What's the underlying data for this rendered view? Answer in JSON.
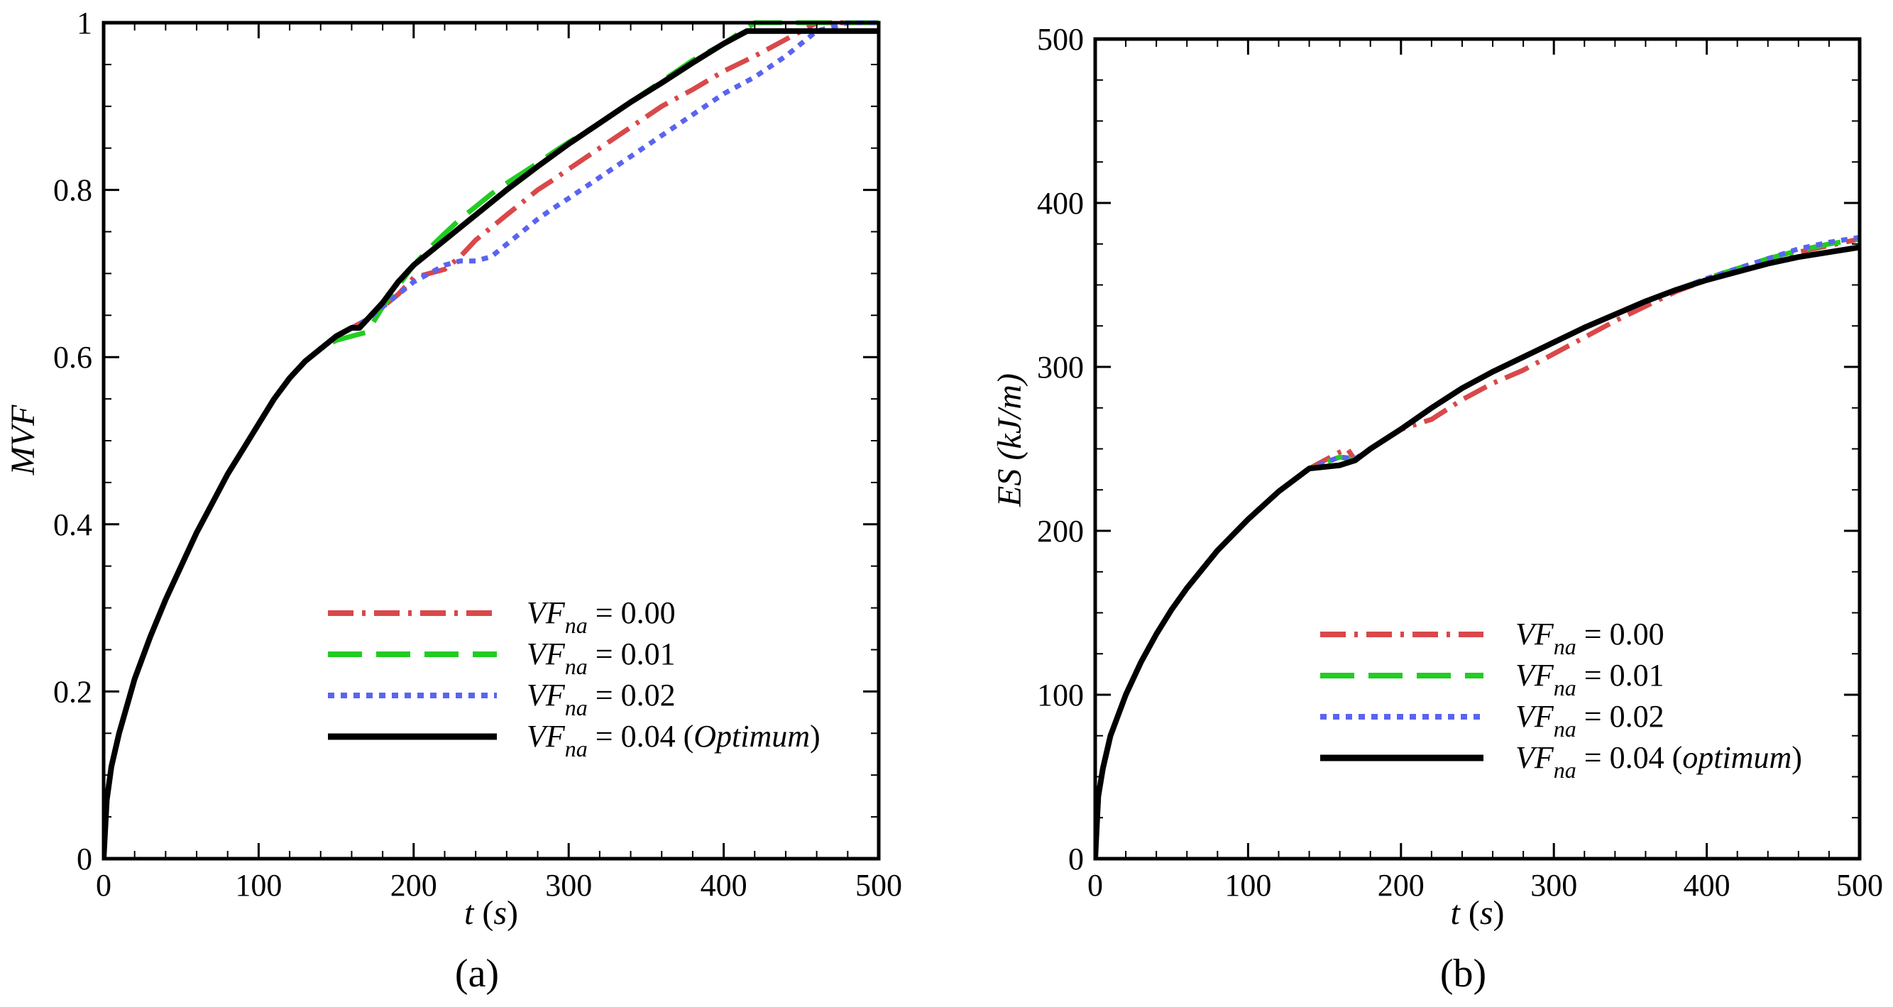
{
  "chart_data": [
    {
      "type": "line",
      "panel_label": "(a)",
      "xlabel": {
        "var": "t",
        "unit": "s"
      },
      "ylabel": "MVF",
      "xlim": [
        0,
        500
      ],
      "ylim": [
        0,
        1
      ],
      "xticks": [
        0,
        100,
        200,
        300,
        400,
        500
      ],
      "xtick_labels": [
        "0",
        "100",
        "200",
        "300",
        "400",
        "500"
      ],
      "yticks": [
        0,
        0.2,
        0.4,
        0.6,
        0.8,
        1
      ],
      "ytick_labels": [
        "0",
        "0.2",
        "0.4",
        "0.6",
        "0.8",
        "1"
      ],
      "grid": false,
      "legend_position": "bottom-right",
      "series": [
        {
          "name": "VFna = 0.00",
          "legend": {
            "sym": "VF",
            "sub": "na",
            "eq": " = 0.00",
            "note": ""
          },
          "color": "#d9484a",
          "style": "dashdot",
          "x": [
            0,
            2,
            5,
            10,
            20,
            30,
            40,
            50,
            60,
            70,
            80,
            90,
            100,
            110,
            120,
            130,
            140,
            150,
            160,
            170,
            180,
            190,
            200,
            210,
            220,
            230,
            240,
            250,
            260,
            270,
            280,
            290,
            300,
            320,
            340,
            360,
            380,
            400,
            420,
            440,
            450,
            460,
            480,
            500
          ],
          "y": [
            0,
            0.07,
            0.11,
            0.15,
            0.215,
            0.265,
            0.31,
            0.35,
            0.39,
            0.425,
            0.46,
            0.49,
            0.52,
            0.55,
            0.575,
            0.595,
            0.61,
            0.625,
            0.635,
            0.645,
            0.66,
            0.675,
            0.695,
            0.7,
            0.705,
            0.72,
            0.74,
            0.755,
            0.77,
            0.785,
            0.8,
            0.812,
            0.825,
            0.85,
            0.875,
            0.9,
            0.92,
            0.942,
            0.96,
            0.98,
            0.99,
            1,
            1,
            1
          ]
        },
        {
          "name": "VFna = 0.01",
          "legend": {
            "sym": "VF",
            "sub": "na",
            "eq": " = 0.01",
            "note": ""
          },
          "color": "#22cc22",
          "style": "longdash",
          "x": [
            0,
            2,
            5,
            10,
            20,
            30,
            40,
            50,
            60,
            70,
            80,
            90,
            100,
            110,
            120,
            130,
            140,
            150,
            160,
            170,
            180,
            190,
            200,
            210,
            220,
            230,
            240,
            250,
            260,
            270,
            280,
            290,
            300,
            320,
            340,
            360,
            380,
            400,
            420,
            430,
            440,
            450,
            460,
            480,
            500
          ],
          "y": [
            0,
            0.07,
            0.11,
            0.15,
            0.215,
            0.265,
            0.31,
            0.35,
            0.39,
            0.425,
            0.46,
            0.49,
            0.52,
            0.55,
            0.575,
            0.595,
            0.61,
            0.62,
            0.625,
            0.63,
            0.66,
            0.685,
            0.71,
            0.73,
            0.748,
            0.765,
            0.78,
            0.795,
            0.808,
            0.82,
            0.832,
            0.845,
            0.857,
            0.88,
            0.905,
            0.93,
            0.955,
            0.975,
            1,
            1,
            1,
            1,
            1,
            1,
            1
          ]
        },
        {
          "name": "VFna = 0.02",
          "legend": {
            "sym": "VF",
            "sub": "na",
            "eq": " = 0.02",
            "note": ""
          },
          "color": "#5a64f0",
          "style": "dotted",
          "x": [
            0,
            2,
            5,
            10,
            20,
            30,
            40,
            50,
            60,
            70,
            80,
            90,
            100,
            110,
            120,
            130,
            140,
            150,
            160,
            170,
            180,
            190,
            200,
            210,
            220,
            230,
            240,
            250,
            260,
            270,
            280,
            290,
            300,
            320,
            340,
            360,
            380,
            400,
            420,
            440,
            460,
            480,
            500
          ],
          "y": [
            0,
            0.07,
            0.11,
            0.15,
            0.215,
            0.265,
            0.31,
            0.35,
            0.39,
            0.425,
            0.46,
            0.49,
            0.52,
            0.55,
            0.575,
            0.595,
            0.61,
            0.625,
            0.635,
            0.645,
            0.66,
            0.675,
            0.69,
            0.7,
            0.71,
            0.715,
            0.715,
            0.72,
            0.735,
            0.75,
            0.765,
            0.778,
            0.79,
            0.815,
            0.84,
            0.865,
            0.89,
            0.915,
            0.935,
            0.96,
            0.99,
            1,
            1
          ]
        },
        {
          "name": "VFna = 0.04 (Optimum)",
          "legend": {
            "sym": "VF",
            "sub": "na",
            "eq": " = 0.04 (",
            "note": "Optimum",
            "close": ")"
          },
          "color": "#000000",
          "style": "solid",
          "x": [
            0,
            2,
            5,
            10,
            20,
            30,
            40,
            50,
            60,
            70,
            80,
            90,
            100,
            110,
            120,
            130,
            140,
            150,
            160,
            165,
            170,
            180,
            190,
            200,
            220,
            240,
            260,
            280,
            300,
            320,
            340,
            360,
            380,
            400,
            415,
            420,
            440,
            460,
            480,
            500
          ],
          "y": [
            0,
            0.07,
            0.11,
            0.15,
            0.215,
            0.265,
            0.31,
            0.35,
            0.39,
            0.425,
            0.46,
            0.49,
            0.52,
            0.55,
            0.575,
            0.595,
            0.61,
            0.625,
            0.635,
            0.635,
            0.645,
            0.665,
            0.69,
            0.71,
            0.74,
            0.77,
            0.8,
            0.828,
            0.855,
            0.88,
            0.905,
            0.928,
            0.952,
            0.975,
            0.99,
            0.99,
            0.99,
            0.99,
            0.99,
            0.99
          ]
        }
      ]
    },
    {
      "type": "line",
      "panel_label": "(b)",
      "xlabel": {
        "var": "t",
        "unit": "s"
      },
      "ylabel": "ES (kJ/m)",
      "xlim": [
        0,
        500
      ],
      "ylim": [
        0,
        500
      ],
      "xticks": [
        0,
        100,
        200,
        300,
        400,
        500
      ],
      "xtick_labels": [
        "0",
        "100",
        "200",
        "300",
        "400",
        "500"
      ],
      "yticks": [
        0,
        100,
        200,
        300,
        400,
        500
      ],
      "ytick_labels": [
        "0",
        "100",
        "200",
        "300",
        "400",
        "500"
      ],
      "grid": false,
      "legend_position": "bottom-right",
      "series": [
        {
          "name": "VFna = 0.00",
          "legend": {
            "sym": "VF",
            "sub": "na",
            "eq": " = 0.00",
            "note": ""
          },
          "color": "#d9484a",
          "style": "dashdot",
          "x": [
            0,
            2,
            5,
            10,
            20,
            30,
            40,
            50,
            60,
            80,
            100,
            120,
            140,
            160,
            165,
            170,
            180,
            200,
            220,
            240,
            260,
            280,
            300,
            320,
            340,
            360,
            380,
            400,
            420,
            440,
            460,
            480,
            500
          ],
          "y": [
            0,
            38,
            55,
            75,
            100,
            120,
            137,
            152,
            165,
            188,
            207,
            224,
            238,
            248,
            250,
            243,
            250,
            262,
            268,
            280,
            290,
            298,
            308,
            318,
            328,
            337,
            346,
            353,
            358,
            364,
            370,
            374,
            378
          ]
        },
        {
          "name": "VFna = 0.01",
          "legend": {
            "sym": "VF",
            "sub": "na",
            "eq": " = 0.01",
            "note": ""
          },
          "color": "#22cc22",
          "style": "longdash",
          "x": [
            0,
            2,
            5,
            10,
            20,
            30,
            40,
            50,
            60,
            80,
            100,
            120,
            140,
            160,
            170,
            180,
            200,
            220,
            240,
            260,
            280,
            300,
            320,
            340,
            360,
            380,
            400,
            420,
            440,
            460,
            480,
            500
          ],
          "y": [
            0,
            38,
            55,
            75,
            100,
            120,
            137,
            152,
            165,
            188,
            207,
            224,
            238,
            245,
            243,
            250,
            262,
            275,
            287,
            297,
            306,
            315,
            324,
            332,
            340,
            347,
            354,
            360,
            366,
            371,
            375,
            378
          ]
        },
        {
          "name": "VFna = 0.02",
          "legend": {
            "sym": "VF",
            "sub": "na",
            "eq": " = 0.02",
            "note": ""
          },
          "color": "#5a64f0",
          "style": "dotted",
          "x": [
            0,
            2,
            5,
            10,
            20,
            30,
            40,
            50,
            60,
            80,
            100,
            120,
            140,
            160,
            170,
            180,
            200,
            220,
            240,
            260,
            280,
            300,
            320,
            340,
            360,
            380,
            400,
            420,
            440,
            460,
            480,
            500
          ],
          "y": [
            0,
            38,
            55,
            75,
            100,
            120,
            137,
            152,
            165,
            188,
            207,
            224,
            238,
            245,
            244,
            250,
            262,
            275,
            287,
            297,
            306,
            315,
            324,
            332,
            340,
            347,
            354,
            360,
            366,
            372,
            376,
            379
          ]
        },
        {
          "name": "VFna = 0.04 (optimum)",
          "legend": {
            "sym": "VF",
            "sub": "na",
            "eq": " = 0.04 (",
            "note": "optimum",
            "close": ")"
          },
          "color": "#000000",
          "style": "solid",
          "x": [
            0,
            2,
            5,
            10,
            20,
            30,
            40,
            50,
            60,
            80,
            100,
            120,
            140,
            160,
            170,
            180,
            200,
            220,
            240,
            260,
            280,
            300,
            320,
            340,
            360,
            380,
            400,
            420,
            440,
            460,
            480,
            500
          ],
          "y": [
            0,
            38,
            55,
            75,
            100,
            120,
            137,
            152,
            165,
            188,
            207,
            224,
            238,
            240,
            243,
            250,
            262,
            275,
            287,
            297,
            306,
            315,
            324,
            332,
            340,
            347,
            353,
            358,
            363,
            367,
            370,
            373
          ]
        }
      ]
    }
  ]
}
